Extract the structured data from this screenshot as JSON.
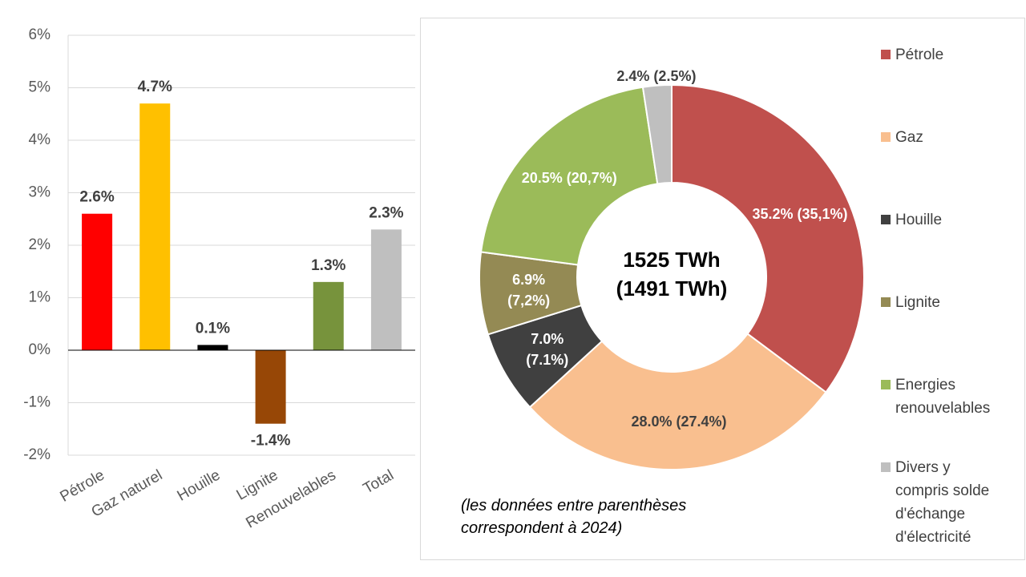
{
  "chart_data": [
    {
      "type": "bar",
      "categories": [
        "Pétrole",
        "Gaz naturel",
        "Houille",
        "Lignite",
        "Renouvelables",
        "Total"
      ],
      "values": [
        2.6,
        4.7,
        0.1,
        -1.4,
        1.3,
        2.3
      ],
      "value_labels": [
        "2.6%",
        "4.7%",
        "0.1%",
        "-1.4%",
        "1.3%",
        "2.3%"
      ],
      "colors": [
        "#ff0000",
        "#ffc000",
        "#000000",
        "#974706",
        "#77933c",
        "#bfbfbf"
      ],
      "ylim": [
        -2,
        6
      ],
      "yticks": [
        {
          "value": -2,
          "label": "-2%"
        },
        {
          "value": -1,
          "label": "-1%"
        },
        {
          "value": 0,
          "label": "0%"
        },
        {
          "value": 1,
          "label": "1%"
        },
        {
          "value": 2,
          "label": "2%"
        },
        {
          "value": 3,
          "label": "3%"
        },
        {
          "value": 4,
          "label": "4%"
        },
        {
          "value": 5,
          "label": "5%"
        },
        {
          "value": 6,
          "label": "6%"
        }
      ],
      "grid": true
    },
    {
      "type": "donut",
      "categories": [
        "Pétrole",
        "Gaz",
        "Houille",
        "Lignite",
        "Energies renouvelables",
        "Divers y compris solde d'échange d'électricité"
      ],
      "values": [
        35.2,
        28.0,
        7.0,
        6.9,
        20.5,
        2.4
      ],
      "value_labels": [
        "35.2% (35,1%)",
        "28.0% (27.4%)",
        "7.0% (7.1%)",
        "6.9% (7,2%)",
        "20.5% (20,7%)",
        "2.4% (2.5%)"
      ],
      "colors": [
        "#c0504d",
        "#f9bf8f",
        "#404040",
        "#948a54",
        "#9bbb59",
        "#bfbfbf"
      ],
      "label_colors": [
        "#ffffff",
        "#404040",
        "#ffffff",
        "#ffffff",
        "#ffffff",
        "#404040"
      ],
      "center_text": [
        "1525 TWh",
        "(1491 TWh)"
      ],
      "note": [
        "(les données entre parenthèses",
        "correspondent à 2024)"
      ],
      "legend": "right"
    }
  ]
}
